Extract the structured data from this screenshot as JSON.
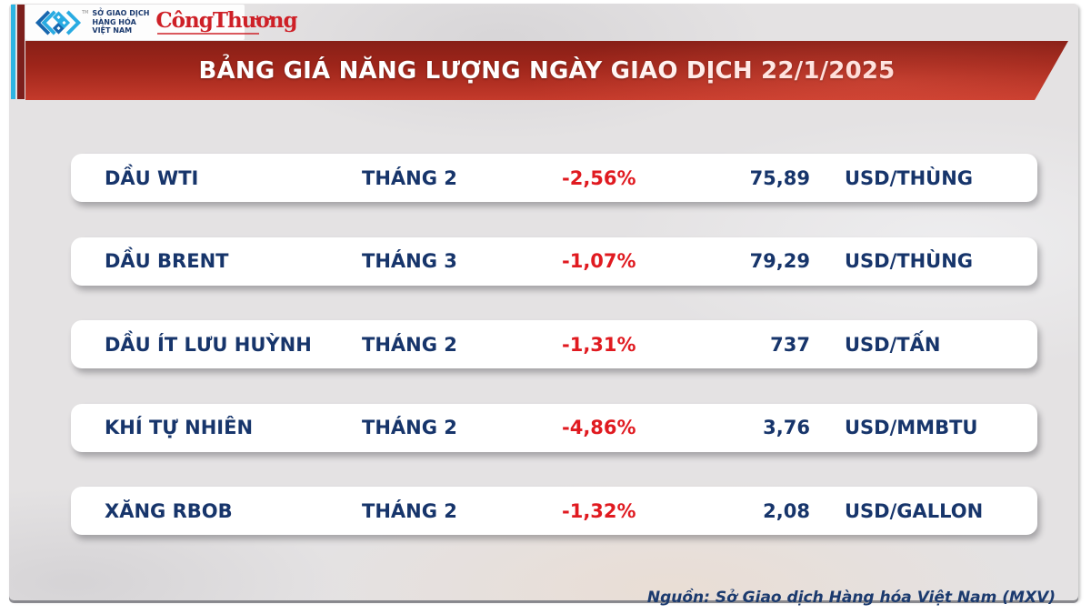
{
  "brand": {
    "mxv_logo_lines": [
      "SỞ GIAO DỊCH",
      "HÀNG HÓA",
      "VIỆT NAM"
    ],
    "trademark": "TM",
    "congthuong_logo": "CôngThương"
  },
  "banner": {
    "title": "BẢNG GIÁ NĂNG LƯỢNG NGÀY GIAO DỊCH 22/1/2025"
  },
  "chart_data": {
    "type": "table",
    "title": "BẢNG GIÁ NĂNG LƯỢNG NGÀY GIAO DỊCH 22/1/2025",
    "rows": [
      {
        "commodity": "DẦU WTI",
        "contract": "THÁNG 2",
        "change": "-2,56%",
        "price": "75,89",
        "unit": "USD/THÙNG"
      },
      {
        "commodity": "DẦU BRENT",
        "contract": "THÁNG 3",
        "change": "-1,07%",
        "price": "79,29",
        "unit": "USD/THÙNG"
      },
      {
        "commodity": "DẦU ÍT LƯU HUỲNH",
        "contract": "THÁNG 2",
        "change": "-1,31%",
        "price": "737",
        "unit": "USD/TẤN"
      },
      {
        "commodity": "KHÍ TỰ NHIÊN",
        "contract": "THÁNG 2",
        "change": "-4,86%",
        "price": "3,76",
        "unit": "USD/MMBTU"
      },
      {
        "commodity": "XĂNG RBOB",
        "contract": "THÁNG 2",
        "change": "-1,32%",
        "price": "2,08",
        "unit": "USD/GALLON"
      }
    ]
  },
  "footer": {
    "source": "Nguồn: Sở Giao dịch Hàng hóa Việt Nam (MXV)"
  },
  "colors": {
    "navy": "#17356b",
    "negative_red": "#e01a20",
    "banner_dark": "#871f17",
    "banner_bright": "#c43a2b",
    "accent_cyan": "#2db4e2",
    "accent_maroon": "#7c1f1c",
    "congthuong_red": "#ce2027",
    "background_gray": "#e4e2e3"
  }
}
